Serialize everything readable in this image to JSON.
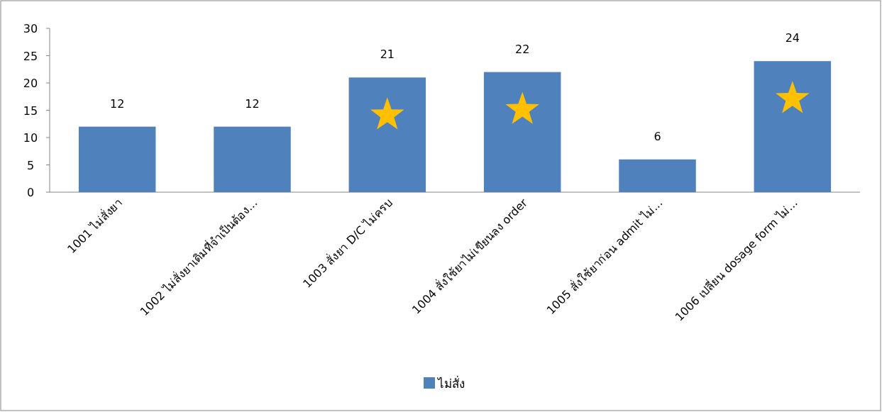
{
  "chart_data": {
    "type": "bar",
    "categories": [
      "1001 ไม่สั่งยา",
      "1002 ไม่สั่งยาเดิมที่จำเป็นต้อง...",
      "1003 สั่งยา D/C ไม่ครบ",
      "1004 สั่งใช้ยาไม่เขียนลง order",
      "1005 สั่งใช้ยาก่อน admit ไม่...",
      "1006 เปลี่ยน dosage form ไม่..."
    ],
    "series": [
      {
        "name": "ไม่สั่ง",
        "color": "#4f81bd",
        "values": [
          12,
          12,
          21,
          22,
          6,
          24
        ]
      }
    ],
    "ylim": [
      0,
      30
    ],
    "yticks": [
      0,
      5,
      10,
      15,
      20,
      25,
      30
    ],
    "data_labels": true,
    "legend": "bottom",
    "grid": false
  }
}
